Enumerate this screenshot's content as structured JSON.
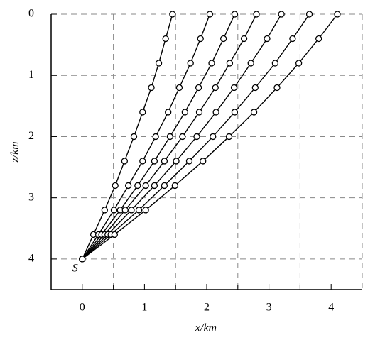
{
  "chart_data": {
    "type": "line",
    "xlabel": "x/km",
    "ylabel": "z/km",
    "annotation": "S",
    "xlim": [
      -0.5,
      4.5
    ],
    "ylim": [
      4.5,
      0
    ],
    "xticks": [
      0,
      1,
      2,
      3,
      4
    ],
    "yticks": [
      0,
      1,
      2,
      3,
      4
    ],
    "xgrid": [
      0.5,
      1.5,
      2.5,
      3.5
    ],
    "grid": true,
    "color": "#000000",
    "marker": "circle",
    "series": [
      {
        "x": [
          0,
          0.18,
          0.36,
          0.53,
          0.68,
          0.83,
          0.97,
          1.11,
          1.23,
          1.34,
          1.45
        ],
        "values": [
          4,
          3.6,
          3.2,
          2.8,
          2.4,
          2.0,
          1.6,
          1.2,
          0.8,
          0.4,
          0
        ]
      },
      {
        "x": [
          0,
          0.26,
          0.51,
          0.74,
          0.97,
          1.18,
          1.38,
          1.56,
          1.74,
          1.9,
          2.05
        ],
        "values": [
          4,
          3.6,
          3.2,
          2.8,
          2.4,
          2.0,
          1.6,
          1.2,
          0.8,
          0.4,
          0
        ]
      },
      {
        "x": [
          0,
          0.31,
          0.61,
          0.89,
          1.16,
          1.41,
          1.65,
          1.87,
          2.08,
          2.27,
          2.45
        ],
        "values": [
          4,
          3.6,
          3.2,
          2.8,
          2.4,
          2.0,
          1.6,
          1.2,
          0.8,
          0.4,
          0
        ]
      },
      {
        "x": [
          0,
          0.36,
          0.69,
          1.02,
          1.32,
          1.61,
          1.88,
          2.14,
          2.37,
          2.6,
          2.8
        ],
        "values": [
          4,
          3.6,
          3.2,
          2.8,
          2.4,
          2.0,
          1.6,
          1.2,
          0.8,
          0.4,
          0
        ]
      },
      {
        "x": [
          0,
          0.41,
          0.79,
          1.16,
          1.51,
          1.84,
          2.15,
          2.44,
          2.71,
          2.97,
          3.2
        ],
        "values": [
          4,
          3.6,
          3.2,
          2.8,
          2.4,
          2.0,
          1.6,
          1.2,
          0.8,
          0.4,
          0
        ]
      },
      {
        "x": [
          0,
          0.46,
          0.91,
          1.32,
          1.72,
          2.1,
          2.45,
          2.78,
          3.1,
          3.38,
          3.65
        ],
        "values": [
          4,
          3.6,
          3.2,
          2.8,
          2.4,
          2.0,
          1.6,
          1.2,
          0.8,
          0.4,
          0
        ]
      },
      {
        "x": [
          0,
          0.52,
          1.02,
          1.49,
          1.94,
          2.36,
          2.76,
          3.13,
          3.48,
          3.8,
          4.1
        ],
        "values": [
          4,
          3.6,
          3.2,
          2.8,
          2.4,
          2.0,
          1.6,
          1.2,
          0.8,
          0.4,
          0
        ]
      }
    ]
  }
}
